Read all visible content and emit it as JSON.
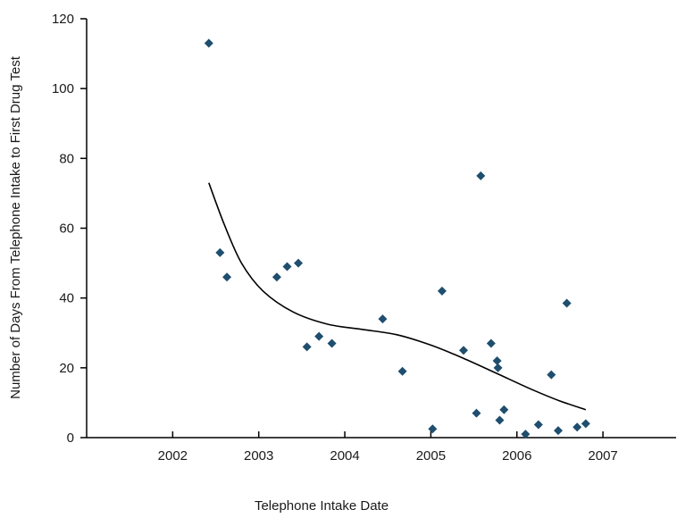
{
  "chart_data": {
    "type": "scatter",
    "title": "",
    "xlabel": "Telephone Intake Date",
    "ylabel": "Number of Days From Telephone Intake to First Drug Test",
    "xlim": [
      2001.0,
      2007.85
    ],
    "ylim": [
      0,
      120
    ],
    "x_ticks": [
      2002,
      2003,
      2004,
      2005,
      2006,
      2007
    ],
    "y_ticks": [
      0,
      20,
      40,
      60,
      80,
      100,
      120
    ],
    "grid": false,
    "marker_color": "#1f4e6e",
    "trend_color": "#000000",
    "series": [
      {
        "points": [
          [
            2002.42,
            113
          ],
          [
            2002.55,
            53
          ],
          [
            2002.63,
            46
          ],
          [
            2003.21,
            46
          ],
          [
            2003.33,
            49
          ],
          [
            2003.46,
            50
          ],
          [
            2003.56,
            26
          ],
          [
            2003.7,
            29
          ],
          [
            2003.85,
            27
          ],
          [
            2004.44,
            34
          ],
          [
            2004.67,
            19
          ],
          [
            2005.02,
            2.5
          ],
          [
            2005.13,
            42
          ],
          [
            2005.38,
            25
          ],
          [
            2005.53,
            7
          ],
          [
            2005.58,
            75
          ],
          [
            2005.7,
            27
          ],
          [
            2005.77,
            22
          ],
          [
            2005.78,
            20
          ],
          [
            2005.8,
            5
          ],
          [
            2005.85,
            8
          ],
          [
            2006.1,
            1
          ],
          [
            2006.25,
            3.7
          ],
          [
            2006.4,
            18
          ],
          [
            2006.48,
            2
          ],
          [
            2006.58,
            38.5
          ],
          [
            2006.7,
            3
          ],
          [
            2006.8,
            4
          ]
        ]
      }
    ],
    "trend_line": [
      [
        2002.42,
        73
      ],
      [
        2002.6,
        61
      ],
      [
        2002.8,
        50
      ],
      [
        2003.05,
        42
      ],
      [
        2003.4,
        36
      ],
      [
        2003.8,
        32.5
      ],
      [
        2004.2,
        31
      ],
      [
        2004.6,
        29.5
      ],
      [
        2005.0,
        26.5
      ],
      [
        2005.4,
        22.5
      ],
      [
        2005.8,
        18
      ],
      [
        2006.2,
        13.5
      ],
      [
        2006.5,
        10.5
      ],
      [
        2006.8,
        8
      ]
    ]
  }
}
